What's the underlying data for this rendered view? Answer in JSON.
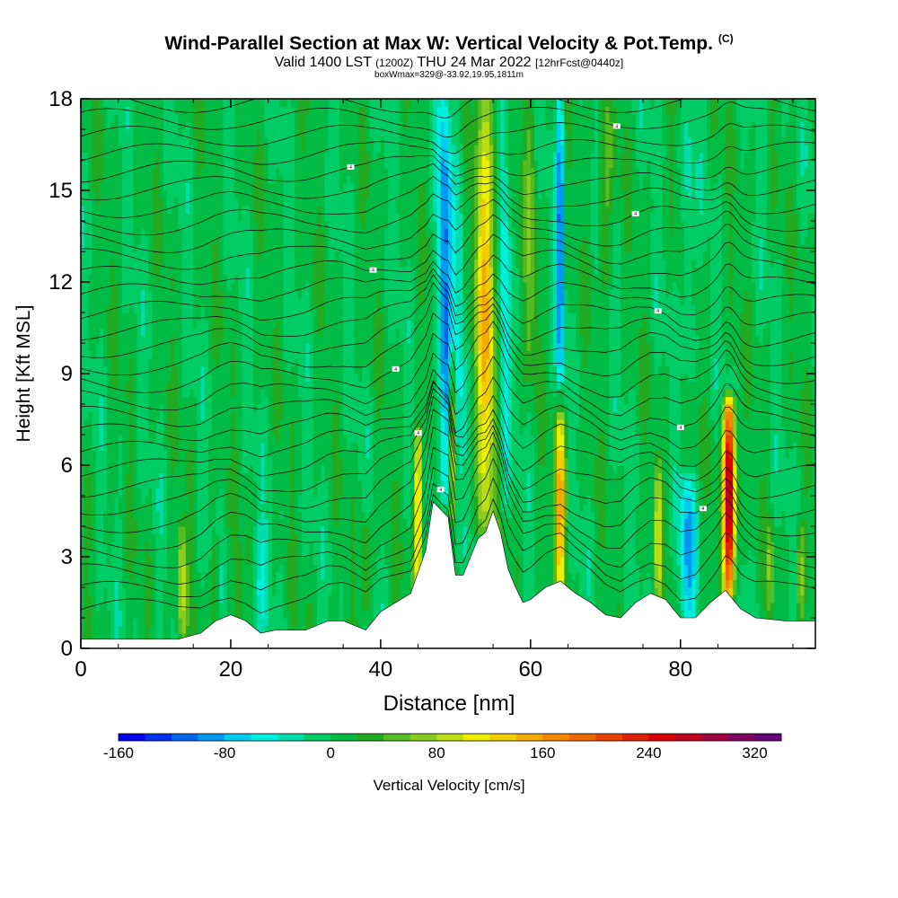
{
  "header": {
    "title": "Wind-Parallel Section at Max W: Vertical Velocity & Pot.Temp.",
    "copyright": "(C)",
    "valid_prefix": "Valid 1400 LST",
    "valid_z": "(1200Z)",
    "valid_date": "THU 24 Mar 2022",
    "forecast": "[12hrFcst@0440z]",
    "boxinfo": "boxWmax=329@-33.92,19.95,1811m"
  },
  "chart_data": {
    "type": "heatmap",
    "title": "Wind-Parallel Section at Max W: Vertical Velocity & Pot.Temp.",
    "xlabel": "Distance [nm]",
    "ylabel": "Height [Kft MSL]",
    "xlim": [
      0,
      98
    ],
    "ylim": [
      0,
      18
    ],
    "xticks": [
      0,
      20,
      40,
      60,
      80
    ],
    "yticks": [
      0,
      3,
      6,
      9,
      12,
      15,
      18
    ],
    "colorbar": {
      "label": "Vertical Velocity [cm/s]",
      "min": -160,
      "max": 340,
      "step": 20,
      "tick_values": [
        -160,
        -80,
        0,
        80,
        160,
        240,
        320
      ],
      "tick_labels": [
        "-160",
        "-80",
        "0",
        "80",
        "160",
        "240",
        "320"
      ],
      "colors": [
        "#0000ee",
        "#0033ee",
        "#0066ee",
        "#0099ee",
        "#00ccee",
        "#00eedd",
        "#00ddaa",
        "#00cc66",
        "#00bb44",
        "#22aa22",
        "#55bb22",
        "#88cc22",
        "#bbdd11",
        "#eeee00",
        "#f5cc00",
        "#f5aa00",
        "#f58800",
        "#f06600",
        "#e84400",
        "#e02200",
        "#d80000",
        "#c00022",
        "#a00044",
        "#800066",
        "#660077"
      ]
    },
    "terrain": [
      [
        0,
        0.3
      ],
      [
        5,
        0.3
      ],
      [
        9,
        0.3
      ],
      [
        13,
        0.3
      ],
      [
        16,
        0.5
      ],
      [
        18,
        0.9
      ],
      [
        20,
        1.1
      ],
      [
        22,
        0.9
      ],
      [
        24,
        0.5
      ],
      [
        26,
        0.6
      ],
      [
        30,
        0.6
      ],
      [
        33,
        0.9
      ],
      [
        35,
        0.9
      ],
      [
        38,
        0.6
      ],
      [
        40,
        1.2
      ],
      [
        42,
        1.5
      ],
      [
        44,
        1.8
      ],
      [
        46,
        3.2
      ],
      [
        47,
        4.8
      ],
      [
        49,
        4.3
      ],
      [
        50,
        2.4
      ],
      [
        51,
        2.4
      ],
      [
        52,
        3.0
      ],
      [
        53,
        3.6
      ],
      [
        54,
        3.8
      ],
      [
        55,
        4.5
      ],
      [
        56,
        3.8
      ],
      [
        57,
        2.6
      ],
      [
        58,
        2.0
      ],
      [
        59,
        1.5
      ],
      [
        60,
        1.6
      ],
      [
        62,
        2.0
      ],
      [
        64,
        2.2
      ],
      [
        66,
        1.8
      ],
      [
        68,
        1.5
      ],
      [
        70,
        1.1
      ],
      [
        72,
        1.0
      ],
      [
        74,
        1.5
      ],
      [
        76,
        1.8
      ],
      [
        78,
        1.6
      ],
      [
        80,
        1.0
      ],
      [
        82,
        1.0
      ],
      [
        84,
        1.5
      ],
      [
        86,
        1.9
      ],
      [
        88,
        1.3
      ],
      [
        90,
        1.0
      ],
      [
        94,
        0.9
      ],
      [
        98,
        0.9
      ]
    ],
    "w_background": 5,
    "w_features": [
      {
        "x": 48.5,
        "ymin": 5.0,
        "ymax": 18,
        "sx": 0.9,
        "w": -110
      },
      {
        "x": 50.5,
        "ymin": 2.5,
        "ymax": 18,
        "sx": 0.8,
        "w": -40
      },
      {
        "x": 54.0,
        "ymin": 4.0,
        "ymax": 18,
        "sx": 1.3,
        "w": 130
      },
      {
        "x": 56.5,
        "ymin": 4.5,
        "ymax": 18,
        "sx": 0.7,
        "w": -60
      },
      {
        "x": 64.0,
        "ymin": 2.2,
        "ymax": 7.5,
        "sx": 0.7,
        "w": 150
      },
      {
        "x": 64.0,
        "ymin": 9.0,
        "ymax": 18,
        "sx": 0.5,
        "w": -120
      },
      {
        "x": 45.0,
        "ymin": 1.8,
        "ymax": 7.0,
        "sx": 0.6,
        "w": 140
      },
      {
        "x": 49.5,
        "ymin": 4.5,
        "ymax": 9.5,
        "sx": 0.4,
        "w": 120
      },
      {
        "x": 86.5,
        "ymin": 1.9,
        "ymax": 8.0,
        "sx": 0.8,
        "w": 300
      },
      {
        "x": 81.0,
        "ymin": 1.0,
        "ymax": 5.5,
        "sx": 1.2,
        "w": -80
      },
      {
        "x": 81.0,
        "ymin": 9.0,
        "ymax": 18,
        "sx": 0.8,
        "w": -40
      },
      {
        "x": 13.5,
        "ymin": 0.3,
        "ymax": 4.0,
        "sx": 0.6,
        "w": 90
      },
      {
        "x": 18.0,
        "ymin": 0.9,
        "ymax": 3.5,
        "sx": 0.4,
        "w": 60
      },
      {
        "x": 21.0,
        "ymin": 0.9,
        "ymax": 3.0,
        "sx": 0.4,
        "w": 50
      },
      {
        "x": 38.0,
        "ymin": 1.2,
        "ymax": 4.0,
        "sx": 0.6,
        "w": 60
      },
      {
        "x": 24.0,
        "ymin": 0.5,
        "ymax": 4.0,
        "sx": 1.0,
        "w": -40
      },
      {
        "x": 96.0,
        "ymin": 0.9,
        "ymax": 4.0,
        "sx": 0.5,
        "w": 70
      },
      {
        "x": 92.0,
        "ymin": 0.9,
        "ymax": 4.0,
        "sx": 0.4,
        "w": 60
      },
      {
        "x": 77.0,
        "ymin": 1.8,
        "ymax": 6.0,
        "sx": 0.5,
        "w": 90
      },
      {
        "x": 60.0,
        "ymin": 9.0,
        "ymax": 18,
        "sx": 0.8,
        "w": 50
      },
      {
        "x": 70.0,
        "ymin": 12.0,
        "ymax": 18,
        "sx": 1.0,
        "w": 40
      }
    ],
    "theta_contours": {
      "count": 30,
      "base_height": 1.0,
      "top_height": 17.9,
      "label_prefix": "4"
    }
  }
}
